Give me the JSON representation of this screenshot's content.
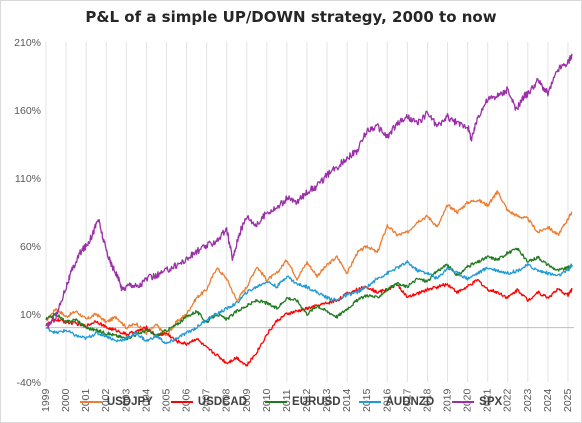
{
  "chart_data": {
    "type": "line",
    "title": "P&L of a simple UP/DOWN strategy, 2000 to now",
    "xlabel": "",
    "ylabel": "",
    "ylim": [
      -40,
      210
    ],
    "y_ticks": [
      -40,
      10,
      60,
      110,
      160,
      210
    ],
    "y_tick_labels": [
      "-40%",
      "10%",
      "60%",
      "110%",
      "160%",
      "210%"
    ],
    "x_ticks": [
      "1999",
      "2000",
      "2001",
      "2002",
      "2003",
      "2004",
      "2005",
      "2006",
      "2007",
      "2008",
      "2009",
      "2010",
      "2011",
      "2012",
      "2013",
      "2014",
      "2015",
      "2016",
      "2017",
      "2018",
      "2019",
      "2020",
      "2021",
      "2022",
      "2023",
      "2024",
      "2025"
    ],
    "xlim": [
      1999.0,
      2025.3
    ],
    "grid": "vertical",
    "legend_position": "bottom",
    "series": [
      {
        "name": "USDJPY",
        "color": "#ED7D31",
        "x": [
          1999.0,
          1999.5,
          2000.0,
          2000.5,
          2001.0,
          2001.5,
          2002.0,
          2002.5,
          2003.0,
          2003.5,
          2004.0,
          2004.5,
          2005.0,
          2005.5,
          2006.0,
          2006.5,
          2007.0,
          2007.5,
          2008.0,
          2008.5,
          2009.0,
          2009.5,
          2010.0,
          2010.5,
          2011.0,
          2011.5,
          2012.0,
          2012.5,
          2013.0,
          2013.5,
          2014.0,
          2014.5,
          2015.0,
          2015.5,
          2016.0,
          2016.5,
          2017.0,
          2017.5,
          2018.0,
          2018.5,
          2019.0,
          2019.5,
          2020.0,
          2020.5,
          2021.0,
          2021.3,
          2021.5,
          2022.0,
          2022.5,
          2023.0,
          2023.5,
          2024.0,
          2024.5,
          2025.0,
          2025.2
        ],
        "values": [
          5,
          14,
          8,
          12,
          6,
          10,
          4,
          8,
          0,
          3,
          -4,
          2,
          -6,
          4,
          10,
          22,
          28,
          44,
          36,
          20,
          30,
          45,
          35,
          40,
          50,
          36,
          48,
          38,
          46,
          52,
          40,
          55,
          60,
          55,
          75,
          68,
          70,
          78,
          82,
          74,
          90,
          85,
          92,
          94,
          90,
          96,
          100,
          86,
          82,
          80,
          70,
          74,
          68,
          80,
          85
        ]
      },
      {
        "name": "USDCAD",
        "color": "#FF0000",
        "x": [
          1999.0,
          1999.5,
          2000.0,
          2000.5,
          2001.0,
          2001.5,
          2002.0,
          2002.5,
          2003.0,
          2003.5,
          2004.0,
          2004.5,
          2005.0,
          2005.5,
          2006.0,
          2006.5,
          2007.0,
          2007.5,
          2008.0,
          2008.5,
          2009.0,
          2009.5,
          2010.0,
          2010.5,
          2011.0,
          2011.5,
          2012.0,
          2012.5,
          2013.0,
          2013.5,
          2014.0,
          2014.5,
          2015.0,
          2015.5,
          2016.0,
          2016.5,
          2017.0,
          2017.5,
          2018.0,
          2018.5,
          2019.0,
          2019.5,
          2020.0,
          2020.5,
          2021.0,
          2021.5,
          2022.0,
          2022.5,
          2023.0,
          2023.5,
          2024.0,
          2024.5,
          2025.0,
          2025.2
        ],
        "values": [
          2,
          6,
          4,
          3,
          1,
          5,
          0,
          -2,
          -5,
          -3,
          0,
          -6,
          -4,
          -10,
          -12,
          -8,
          -15,
          -20,
          -26,
          -22,
          -28,
          -18,
          -5,
          5,
          10,
          12,
          14,
          16,
          18,
          20,
          25,
          28,
          30,
          26,
          28,
          32,
          22,
          25,
          28,
          30,
          32,
          26,
          30,
          35,
          28,
          26,
          22,
          28,
          20,
          26,
          22,
          28,
          24,
          28
        ]
      },
      {
        "name": "EURUSD",
        "color": "#1E7B1E",
        "x": [
          1999.0,
          1999.5,
          2000.0,
          2000.5,
          2001.0,
          2001.5,
          2002.0,
          2002.5,
          2003.0,
          2003.5,
          2004.0,
          2004.5,
          2005.0,
          2005.5,
          2006.0,
          2006.5,
          2007.0,
          2007.5,
          2008.0,
          2008.5,
          2009.0,
          2009.5,
          2010.0,
          2010.5,
          2011.0,
          2011.5,
          2012.0,
          2012.5,
          2013.0,
          2013.5,
          2014.0,
          2014.5,
          2015.0,
          2015.5,
          2016.0,
          2016.5,
          2017.0,
          2017.5,
          2018.0,
          2018.5,
          2019.0,
          2019.5,
          2020.0,
          2020.5,
          2021.0,
          2021.5,
          2022.0,
          2022.5,
          2023.0,
          2023.5,
          2024.0,
          2024.5,
          2025.0,
          2025.2
        ],
        "values": [
          6,
          10,
          4,
          6,
          0,
          -2,
          -4,
          -6,
          -8,
          -5,
          -2,
          -6,
          -2,
          2,
          8,
          12,
          4,
          10,
          6,
          12,
          16,
          20,
          18,
          14,
          22,
          20,
          10,
          16,
          12,
          8,
          14,
          20,
          24,
          22,
          28,
          32,
          30,
          36,
          34,
          42,
          46,
          38,
          45,
          48,
          52,
          50,
          55,
          58,
          48,
          52,
          46,
          42,
          44,
          46
        ]
      },
      {
        "name": "AUDNZD",
        "color": "#1E9BD7",
        "x": [
          1999.0,
          1999.5,
          2000.0,
          2000.5,
          2001.0,
          2001.5,
          2002.0,
          2002.5,
          2003.0,
          2003.5,
          2004.0,
          2004.5,
          2005.0,
          2005.5,
          2006.0,
          2006.5,
          2007.0,
          2007.5,
          2008.0,
          2008.5,
          2009.0,
          2009.5,
          2010.0,
          2010.5,
          2011.0,
          2011.5,
          2012.0,
          2012.5,
          2013.0,
          2013.5,
          2014.0,
          2014.5,
          2015.0,
          2015.5,
          2016.0,
          2016.5,
          2017.0,
          2017.5,
          2018.0,
          2018.5,
          2019.0,
          2019.5,
          2020.0,
          2020.5,
          2021.0,
          2021.5,
          2022.0,
          2022.5,
          2023.0,
          2023.5,
          2024.0,
          2024.5,
          2025.0,
          2025.2
        ],
        "values": [
          0,
          -4,
          -2,
          -6,
          -8,
          -4,
          -6,
          -10,
          -8,
          -4,
          -10,
          -6,
          -12,
          -8,
          -4,
          0,
          6,
          10,
          14,
          18,
          26,
          30,
          34,
          30,
          38,
          32,
          30,
          26,
          22,
          20,
          24,
          26,
          30,
          36,
          40,
          44,
          48,
          42,
          40,
          36,
          44,
          40,
          36,
          40,
          44,
          42,
          40,
          42,
          46,
          42,
          40,
          38,
          42,
          46
        ]
      },
      {
        "name": "SPX",
        "color": "#9B2FA8",
        "x": [
          1999.0,
          1999.5,
          2000.0,
          2000.3,
          2000.7,
          2001.0,
          2001.3,
          2001.6,
          2001.9,
          2002.2,
          2002.5,
          2002.8,
          2003.2,
          2003.6,
          2004.0,
          2004.5,
          2005.0,
          2005.5,
          2006.0,
          2006.5,
          2007.0,
          2007.5,
          2008.0,
          2008.3,
          2008.6,
          2009.0,
          2009.5,
          2010.0,
          2010.5,
          2011.0,
          2011.5,
          2012.0,
          2012.5,
          2013.0,
          2013.5,
          2014.0,
          2014.5,
          2015.0,
          2015.5,
          2016.0,
          2016.5,
          2017.0,
          2017.5,
          2018.0,
          2018.5,
          2019.0,
          2019.5,
          2020.0,
          2020.2,
          2020.5,
          2021.0,
          2021.5,
          2022.0,
          2022.4,
          2022.8,
          2023.0,
          2023.5,
          2024.0,
          2024.5,
          2025.0,
          2025.2
        ],
        "values": [
          0,
          8,
          30,
          42,
          55,
          60,
          68,
          80,
          62,
          48,
          40,
          28,
          32,
          30,
          36,
          38,
          42,
          46,
          50,
          56,
          60,
          64,
          72,
          50,
          68,
          82,
          75,
          85,
          88,
          95,
          92,
          100,
          104,
          112,
          118,
          125,
          130,
          145,
          148,
          140,
          150,
          155,
          150,
          158,
          148,
          155,
          150,
          148,
          138,
          155,
          168,
          170,
          175,
          160,
          170,
          172,
          182,
          172,
          190,
          195,
          200
        ]
      }
    ]
  }
}
